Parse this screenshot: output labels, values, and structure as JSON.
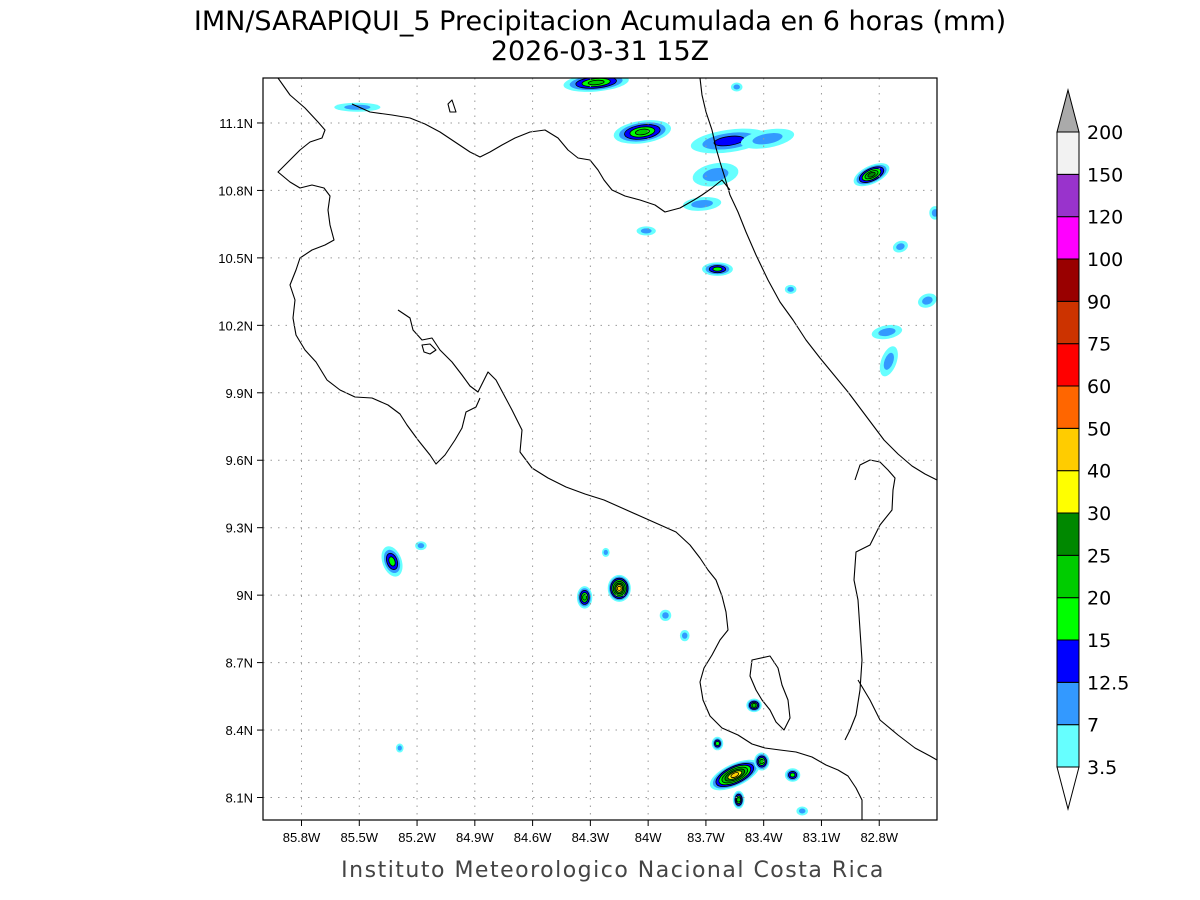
{
  "title": {
    "line1": "IMN/SARAPIQUI_5 Precipitacion Acumulada en 6 horas (mm)",
    "line2": "2026-03-31 15Z"
  },
  "footer": "Instituto Meteorologico Nacional Costa Rica",
  "axes": {
    "lon_range": [
      -86.0,
      -82.5
    ],
    "lat_range": [
      8.0,
      11.3
    ],
    "lon_ticks": [
      {
        "value": -85.8,
        "label": "85.8W"
      },
      {
        "value": -85.5,
        "label": "85.5W"
      },
      {
        "value": -85.2,
        "label": "85.2W"
      },
      {
        "value": -84.9,
        "label": "84.9W"
      },
      {
        "value": -84.6,
        "label": "84.6W"
      },
      {
        "value": -84.3,
        "label": "84.3W"
      },
      {
        "value": -84.0,
        "label": "84W"
      },
      {
        "value": -83.7,
        "label": "83.7W"
      },
      {
        "value": -83.4,
        "label": "83.4W"
      },
      {
        "value": -83.1,
        "label": "83.1W"
      },
      {
        "value": -82.8,
        "label": "82.8W"
      }
    ],
    "lat_ticks": [
      {
        "value": 8.1,
        "label": "8.1N"
      },
      {
        "value": 8.4,
        "label": "8.4N"
      },
      {
        "value": 8.7,
        "label": "8.7N"
      },
      {
        "value": 9.0,
        "label": "9N"
      },
      {
        "value": 9.3,
        "label": "9.3N"
      },
      {
        "value": 9.6,
        "label": "9.6N"
      },
      {
        "value": 9.9,
        "label": "9.9N"
      },
      {
        "value": 10.2,
        "label": "10.2N"
      },
      {
        "value": 10.5,
        "label": "10.5N"
      },
      {
        "value": 10.8,
        "label": "10.8N"
      },
      {
        "value": 11.1,
        "label": "11.1N"
      }
    ],
    "grid": true
  },
  "legend": {
    "placement": "right",
    "bins": [
      {
        "label": "3.5",
        "color": "#ffffff"
      },
      {
        "label": "7",
        "color": "#66ffff"
      },
      {
        "label": "12.5",
        "color": "#3399ff"
      },
      {
        "label": "15",
        "color": "#0000ff"
      },
      {
        "label": "20",
        "color": "#00ff00"
      },
      {
        "label": "25",
        "color": "#00cc00"
      },
      {
        "label": "30",
        "color": "#008800"
      },
      {
        "label": "40",
        "color": "#ffff00"
      },
      {
        "label": "50",
        "color": "#ffcc00"
      },
      {
        "label": "60",
        "color": "#ff6600"
      },
      {
        "label": "75",
        "color": "#ff0000"
      },
      {
        "label": "90",
        "color": "#cc3300"
      },
      {
        "label": "100",
        "color": "#990000"
      },
      {
        "label": "120",
        "color": "#ff00ff"
      },
      {
        "label": "150",
        "color": "#9933cc"
      },
      {
        "label": "200",
        "color": "#f2f2f2"
      }
    ],
    "over_color": "#aaaaaa",
    "under_color": "#ffffff"
  },
  "map_data": {
    "variable": "6-hour accumulated precipitation (mm)",
    "cells": [
      {
        "lon": -84.27,
        "lat": 11.28,
        "rx": 0.17,
        "ry": 0.04,
        "angle": -5,
        "max": 20
      },
      {
        "lon": -84.03,
        "lat": 11.06,
        "rx": 0.15,
        "ry": 0.05,
        "angle": -8,
        "max": 20
      },
      {
        "lon": -83.65,
        "lat": 10.87,
        "rx": 0.12,
        "ry": 0.05,
        "angle": -10,
        "max": 7
      },
      {
        "lon": -83.58,
        "lat": 11.02,
        "rx": 0.2,
        "ry": 0.05,
        "angle": -8,
        "max": 12.5
      },
      {
        "lon": -83.38,
        "lat": 11.03,
        "rx": 0.14,
        "ry": 0.04,
        "angle": -10,
        "max": 7
      },
      {
        "lon": -83.72,
        "lat": 10.74,
        "rx": 0.1,
        "ry": 0.03,
        "angle": -5,
        "max": 7
      },
      {
        "lon": -82.84,
        "lat": 10.87,
        "rx": 0.1,
        "ry": 0.04,
        "angle": -25,
        "max": 25
      },
      {
        "lon": -83.64,
        "lat": 10.45,
        "rx": 0.08,
        "ry": 0.03,
        "angle": 0,
        "max": 15
      },
      {
        "lon": -82.76,
        "lat": 10.17,
        "rx": 0.08,
        "ry": 0.03,
        "angle": -10,
        "max": 7
      },
      {
        "lon": -82.55,
        "lat": 10.31,
        "rx": 0.05,
        "ry": 0.03,
        "angle": -20,
        "max": 7
      },
      {
        "lon": -82.75,
        "lat": 10.04,
        "rx": 0.04,
        "ry": 0.07,
        "angle": 20,
        "max": 7
      },
      {
        "lon": -85.33,
        "lat": 9.15,
        "rx": 0.05,
        "ry": 0.07,
        "angle": -20,
        "max": 15
      },
      {
        "lon": -84.15,
        "lat": 9.03,
        "rx": 0.06,
        "ry": 0.06,
        "angle": 0,
        "max": 40
      },
      {
        "lon": -84.33,
        "lat": 8.99,
        "rx": 0.04,
        "ry": 0.05,
        "angle": 0,
        "max": 20
      },
      {
        "lon": -83.55,
        "lat": 8.2,
        "rx": 0.14,
        "ry": 0.05,
        "angle": -25,
        "max": 40
      },
      {
        "lon": -83.41,
        "lat": 8.26,
        "rx": 0.04,
        "ry": 0.04,
        "angle": 0,
        "max": 20
      },
      {
        "lon": -83.53,
        "lat": 8.09,
        "rx": 0.03,
        "ry": 0.04,
        "angle": 0,
        "max": 20
      },
      {
        "lon": -83.45,
        "lat": 8.51,
        "rx": 0.04,
        "ry": 0.03,
        "angle": 0,
        "max": 20
      },
      {
        "lon": -83.25,
        "lat": 8.2,
        "rx": 0.04,
        "ry": 0.03,
        "angle": 0,
        "max": 15
      },
      {
        "lon": -83.64,
        "lat": 8.34,
        "rx": 0.03,
        "ry": 0.03,
        "angle": 0,
        "max": 15
      },
      {
        "lon": -85.51,
        "lat": 11.17,
        "rx": 0.12,
        "ry": 0.02,
        "angle": 0,
        "max": 7
      },
      {
        "lon": -85.18,
        "lat": 9.22,
        "rx": 0.03,
        "ry": 0.02,
        "angle": 0,
        "max": 7
      },
      {
        "lon": -85.29,
        "lat": 8.32,
        "rx": 0.02,
        "ry": 0.02,
        "angle": 0,
        "max": 7
      },
      {
        "lon": -83.91,
        "lat": 8.91,
        "rx": 0.03,
        "ry": 0.025,
        "angle": 0,
        "max": 7
      },
      {
        "lon": -83.81,
        "lat": 8.82,
        "rx": 0.025,
        "ry": 0.025,
        "angle": 0,
        "max": 7
      },
      {
        "lon": -84.22,
        "lat": 9.19,
        "rx": 0.02,
        "ry": 0.02,
        "angle": 0,
        "max": 7
      },
      {
        "lon": -84.01,
        "lat": 10.62,
        "rx": 0.05,
        "ry": 0.02,
        "angle": 0,
        "max": 7
      },
      {
        "lon": -82.69,
        "lat": 10.55,
        "rx": 0.04,
        "ry": 0.025,
        "angle": -20,
        "max": 7
      },
      {
        "lon": -83.26,
        "lat": 10.36,
        "rx": 0.03,
        "ry": 0.02,
        "angle": 0,
        "max": 7
      },
      {
        "lon": -82.51,
        "lat": 10.7,
        "rx": 0.03,
        "ry": 0.03,
        "angle": 0,
        "max": 7
      },
      {
        "lon": -83.54,
        "lat": 11.26,
        "rx": 0.03,
        "ry": 0.02,
        "angle": 0,
        "max": 7
      },
      {
        "lon": -83.2,
        "lat": 8.04,
        "rx": 0.03,
        "ry": 0.02,
        "angle": 0,
        "max": 7
      }
    ]
  }
}
